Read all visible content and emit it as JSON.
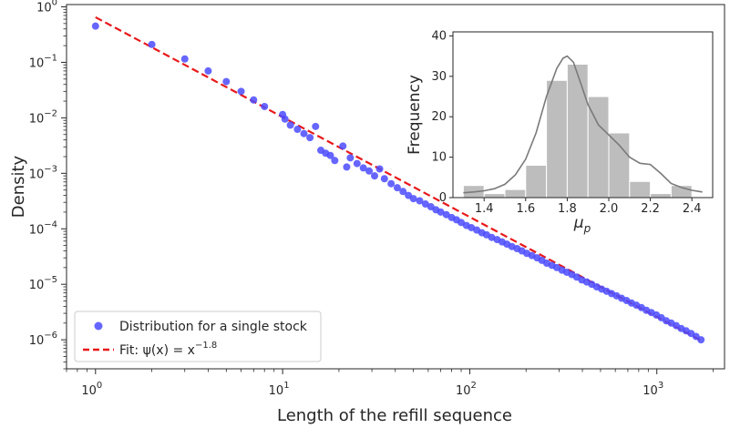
{
  "chart_data": [
    {
      "type": "scatter",
      "scale": "log-log",
      "xlabel": "Length of the refill sequence",
      "ylabel": "Density",
      "xlim": [
        0.7,
        2300
      ],
      "ylim": [
        3e-07,
        1.1
      ],
      "x_ticks": [
        {
          "value": 1,
          "base": "10",
          "exp": "0"
        },
        {
          "value": 10,
          "base": "10",
          "exp": "1"
        },
        {
          "value": 100,
          "base": "10",
          "exp": "2"
        },
        {
          "value": 1000,
          "base": "10",
          "exp": "3"
        }
      ],
      "y_ticks": [
        {
          "value": 1,
          "base": "10",
          "exp": "0"
        },
        {
          "value": 0.1,
          "base": "10",
          "exp": "−1"
        },
        {
          "value": 0.01,
          "base": "10",
          "exp": "−2"
        },
        {
          "value": 0.001,
          "base": "10",
          "exp": "−3"
        },
        {
          "value": 0.0001,
          "base": "10",
          "exp": "−4"
        },
        {
          "value": 1e-05,
          "base": "10",
          "exp": "−5"
        },
        {
          "value": 1e-06,
          "base": "10",
          "exp": "−6"
        }
      ],
      "series": [
        {
          "name": "Distribution for a single stock",
          "kind": "scatter",
          "color": "#4b4bff",
          "points": [
            [
              1,
              0.45
            ],
            [
              2,
              0.21
            ],
            [
              3,
              0.115
            ],
            [
              4,
              0.07
            ],
            [
              5,
              0.045
            ],
            [
              6,
              0.03
            ],
            [
              7,
              0.021
            ],
            [
              8,
              0.016
            ],
            [
              10,
              0.0115
            ],
            [
              10.3,
              0.0095
            ],
            [
              11,
              0.0074
            ],
            [
              12,
              0.0062
            ],
            [
              13,
              0.0052
            ],
            [
              14,
              0.0044
            ],
            [
              15,
              0.007
            ],
            [
              16,
              0.0026
            ],
            [
              17,
              0.0023
            ],
            [
              18,
              0.0021
            ],
            [
              19,
              0.0017
            ],
            [
              21,
              0.0031
            ],
            [
              22,
              0.0013
            ],
            [
              23,
              0.0019
            ],
            [
              25,
              0.0015
            ],
            [
              27,
              0.00125
            ],
            [
              29,
              0.0011
            ],
            [
              31,
              0.0009
            ],
            [
              33,
              0.0012
            ],
            [
              35,
              0.0008
            ],
            [
              38,
              0.00065
            ],
            [
              41,
              0.00055
            ],
            [
              44,
              0.00047
            ],
            [
              47,
              0.0004
            ],
            [
              50,
              0.00035
            ],
            [
              54,
              0.00032
            ],
            [
              58,
              0.00028
            ],
            [
              62,
              0.00025
            ],
            [
              66,
              0.00022
            ],
            [
              70,
              0.0002
            ],
            [
              75,
              0.00018
            ],
            [
              80,
              0.00016
            ],
            [
              85,
              0.000145
            ],
            [
              90,
              0.00013
            ],
            [
              96,
              0.000115
            ],
            [
              102,
              0.000105
            ],
            [
              109,
              9.5e-05
            ],
            [
              116,
              8.5e-05
            ],
            [
              123,
              7.8e-05
            ],
            [
              131,
              7e-05
            ],
            [
              140,
              6.4e-05
            ],
            [
              149,
              5.8e-05
            ],
            [
              158,
              5.3e-05
            ],
            [
              168,
              4.8e-05
            ],
            [
              179,
              4.4e-05
            ],
            [
              190,
              4e-05
            ],
            [
              202,
              3.6e-05
            ],
            [
              215,
              3.3e-05
            ],
            [
              229,
              3e-05
            ],
            [
              243,
              2.7e-05
            ],
            [
              258,
              2.4e-05
            ],
            [
              275,
              2.2e-05
            ],
            [
              292,
              2e-05
            ],
            [
              311,
              1.8e-05
            ],
            [
              330,
              1.65e-05
            ],
            [
              351,
              1.5e-05
            ],
            [
              373,
              1.35e-05
            ],
            [
              397,
              1.2e-05
            ],
            [
              422,
              1.1e-05
            ],
            [
              449,
              1e-05
            ],
            [
              477,
              9e-06
            ],
            [
              507,
              8.2e-06
            ],
            [
              539,
              7.5e-06
            ],
            [
              573,
              6.8e-06
            ],
            [
              609,
              6.2e-06
            ],
            [
              648,
              5.6e-06
            ],
            [
              689,
              5.1e-06
            ],
            [
              732,
              4.6e-06
            ],
            [
              778,
              4.2e-06
            ],
            [
              827,
              3.8e-06
            ],
            [
              879,
              3.4e-06
            ],
            [
              935,
              3.1e-06
            ],
            [
              994,
              2.8e-06
            ],
            [
              1056,
              2.5e-06
            ],
            [
              1123,
              2.2e-06
            ],
            [
              1194,
              2e-06
            ],
            [
              1269,
              1.8e-06
            ],
            [
              1349,
              1.6e-06
            ],
            [
              1434,
              1.45e-06
            ],
            [
              1524,
              1.3e-06
            ],
            [
              1620,
              1.15e-06
            ],
            [
              1722,
              1e-06
            ]
          ]
        },
        {
          "name": "Fit: ψ(x) = x^{−1.8}",
          "kind": "line",
          "style": "dashed",
          "color": "#e8191b",
          "exponent": -1.8,
          "amplitude": 0.65,
          "x_range": [
            1,
            1750
          ]
        }
      ],
      "legend": {
        "placement": "lower-left",
        "entries": [
          {
            "label": "Distribution for a single stock"
          },
          {
            "label_prefix": "Fit: ψ(x) = x",
            "label_sup": "−1.8"
          }
        ]
      }
    },
    {
      "type": "bar",
      "subtype": "histogram-with-kde",
      "xlabel": "μ",
      "xlabel_sub": "p",
      "ylabel": "Frequency",
      "xlim": [
        1.25,
        2.5
      ],
      "ylim": [
        0,
        41
      ],
      "x_ticks": [
        "1.4",
        "1.6",
        "1.8",
        "2.0",
        "2.2",
        "2.4"
      ],
      "y_ticks": [
        "0",
        "10",
        "20",
        "30",
        "40"
      ],
      "bar_color": "#bdbdbd",
      "kde_color": "#7a7a7a",
      "bins": [
        {
          "x0": 1.3,
          "x1": 1.4,
          "count": 3
        },
        {
          "x0": 1.4,
          "x1": 1.5,
          "count": 1
        },
        {
          "x0": 1.5,
          "x1": 1.6,
          "count": 2
        },
        {
          "x0": 1.6,
          "x1": 1.7,
          "count": 8
        },
        {
          "x0": 1.7,
          "x1": 1.8,
          "count": 29
        },
        {
          "x0": 1.8,
          "x1": 1.9,
          "count": 33
        },
        {
          "x0": 1.9,
          "x1": 2.0,
          "count": 25
        },
        {
          "x0": 2.0,
          "x1": 2.1,
          "count": 16
        },
        {
          "x0": 2.1,
          "x1": 2.2,
          "count": 4
        },
        {
          "x0": 2.2,
          "x1": 2.3,
          "count": 1
        },
        {
          "x0": 2.3,
          "x1": 2.4,
          "count": 3
        }
      ],
      "kde_points": [
        [
          1.3,
          1.2
        ],
        [
          1.35,
          1.4
        ],
        [
          1.4,
          1.7
        ],
        [
          1.45,
          2.2
        ],
        [
          1.5,
          3.3
        ],
        [
          1.55,
          5.6
        ],
        [
          1.6,
          9.5
        ],
        [
          1.65,
          16
        ],
        [
          1.7,
          25
        ],
        [
          1.75,
          32
        ],
        [
          1.78,
          34.5
        ],
        [
          1.8,
          35
        ],
        [
          1.83,
          33.5
        ],
        [
          1.86,
          29
        ],
        [
          1.9,
          23
        ],
        [
          1.95,
          18
        ],
        [
          2.0,
          15.5
        ],
        [
          2.05,
          13
        ],
        [
          2.1,
          10
        ],
        [
          2.15,
          8.5
        ],
        [
          2.2,
          8.2
        ],
        [
          2.25,
          6
        ],
        [
          2.3,
          3.5
        ],
        [
          2.35,
          2.5
        ],
        [
          2.4,
          1.8
        ],
        [
          2.45,
          1.4
        ]
      ]
    }
  ]
}
